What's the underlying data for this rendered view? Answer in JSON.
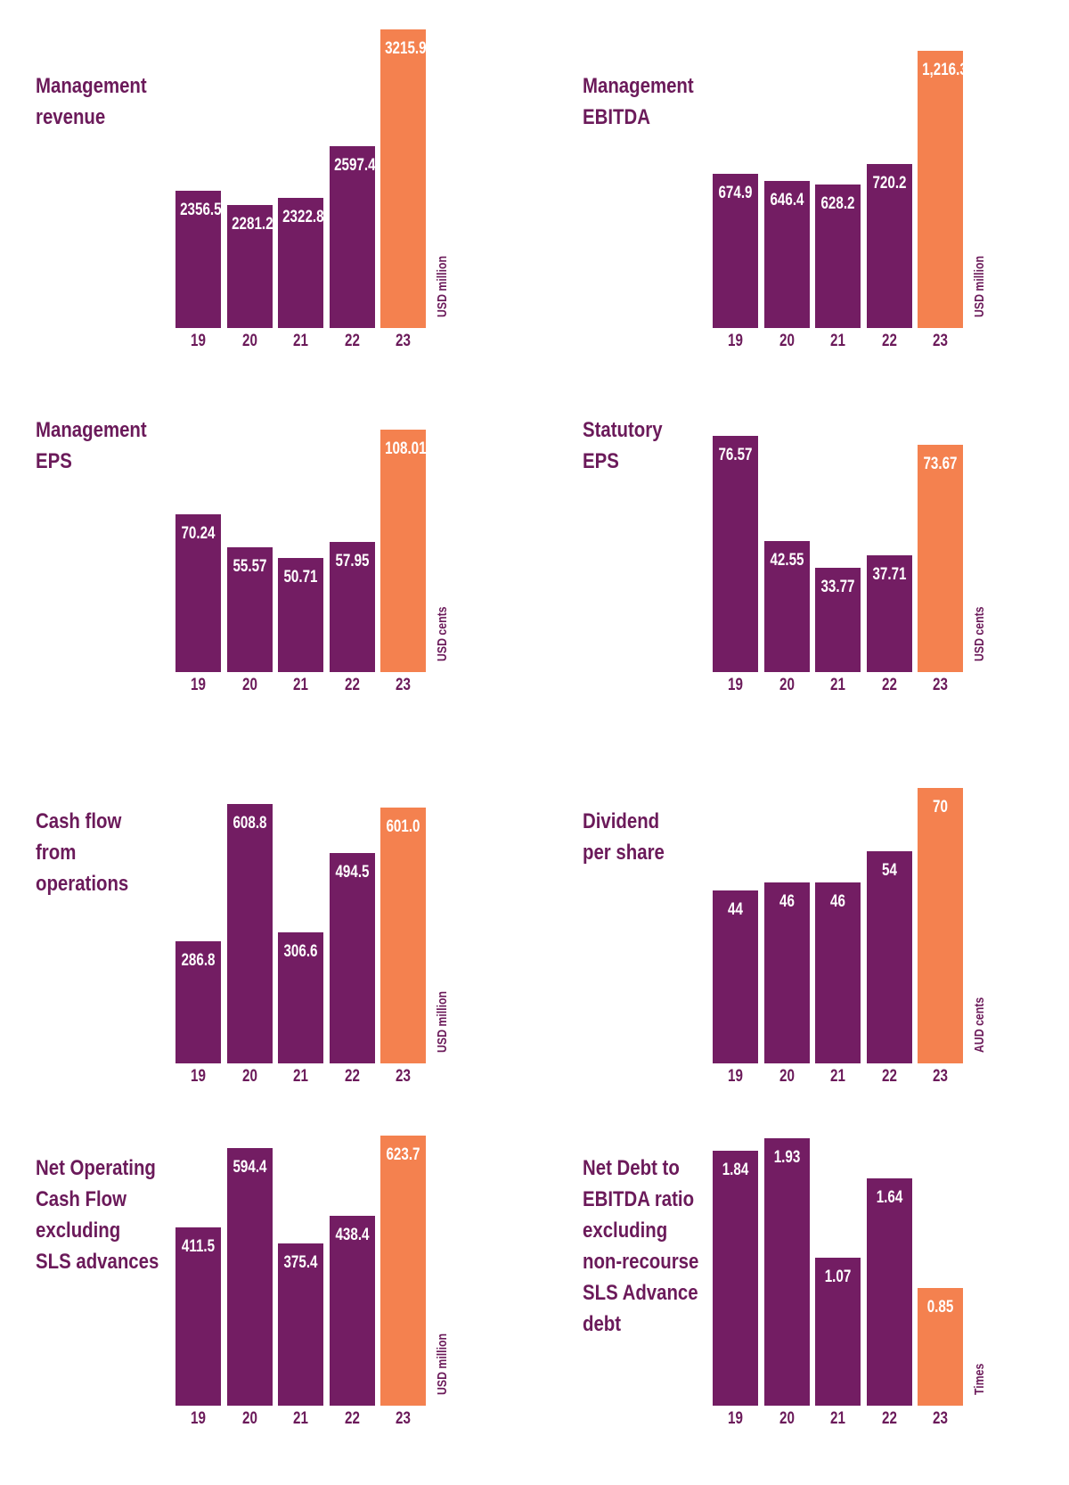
{
  "colors": {
    "bar": "#731d63",
    "bar_highlight": "#f4814f",
    "text": "#6b1a5a",
    "value_text": "#ffffff",
    "background": "#ffffff"
  },
  "chart_data": [
    {
      "id": "management-revenue",
      "type": "bar",
      "title_lines": [
        "Management",
        "revenue"
      ],
      "unit": "USD million",
      "categories": [
        "19",
        "20",
        "21",
        "22",
        "23"
      ],
      "values": [
        2356.5,
        2281.2,
        2322.8,
        2597.4,
        3215.9
      ],
      "value_labels": [
        "2356.5",
        "2281.2",
        "2322.8",
        "2597.4",
        "3215.9"
      ],
      "highlight_index": 4,
      "ylim": [
        1629,
        3215.9
      ],
      "grid": false,
      "legend": "none"
    },
    {
      "id": "management-ebitda",
      "type": "bar",
      "title_lines": [
        "Management",
        "EBITDA"
      ],
      "unit": "USD million",
      "categories": [
        "19",
        "20",
        "21",
        "22",
        "23"
      ],
      "values": [
        674.9,
        646.4,
        628.2,
        720.2,
        1216.3
      ],
      "value_labels": [
        "674.9",
        "646.4",
        "628.2",
        "720.2",
        "1,216.3"
      ],
      "highlight_index": 4,
      "ylim": [
        0,
        1216.3
      ],
      "grid": false,
      "legend": "none"
    },
    {
      "id": "management-eps",
      "type": "bar",
      "title_lines": [
        "Management",
        "EPS"
      ],
      "unit": "USD cents",
      "categories": [
        "19",
        "20",
        "21",
        "22",
        "23"
      ],
      "values": [
        70.24,
        55.57,
        50.71,
        57.95,
        108.01
      ],
      "value_labels": [
        "70.24",
        "55.57",
        "50.71",
        "57.95",
        "108.01"
      ],
      "highlight_index": 4,
      "ylim": [
        0,
        108.01
      ],
      "grid": false,
      "legend": "none"
    },
    {
      "id": "statutory-eps",
      "type": "bar",
      "title_lines": [
        "Statutory",
        "EPS"
      ],
      "unit": "USD cents",
      "categories": [
        "19",
        "20",
        "21",
        "22",
        "23"
      ],
      "values": [
        76.57,
        42.55,
        33.77,
        37.71,
        73.67
      ],
      "value_labels": [
        "76.57",
        "42.55",
        "33.77",
        "37.71",
        "73.67"
      ],
      "highlight_index": 4,
      "ylim": [
        0,
        76.57
      ],
      "grid": false,
      "legend": "none"
    },
    {
      "id": "cash-flow-from-operations",
      "type": "bar",
      "title_lines": [
        "Cash flow",
        "from",
        "operations"
      ],
      "unit": "USD million",
      "categories": [
        "19",
        "20",
        "21",
        "22",
        "23"
      ],
      "values": [
        286.8,
        608.8,
        306.6,
        494.5,
        601.0
      ],
      "value_labels": [
        "286.8",
        "608.8",
        "306.6",
        "494.5",
        "601.0"
      ],
      "highlight_index": 4,
      "ylim": [
        0,
        608.8
      ],
      "grid": false,
      "legend": "none"
    },
    {
      "id": "dividend-per-share",
      "type": "bar",
      "title_lines": [
        "Dividend",
        "per share"
      ],
      "unit": "AUD cents",
      "categories": [
        "19",
        "20",
        "21",
        "22",
        "23"
      ],
      "values": [
        44,
        46,
        46,
        54,
        70
      ],
      "value_labels": [
        "44",
        "46",
        "46",
        "54",
        "70"
      ],
      "highlight_index": 4,
      "ylim": [
        0,
        70
      ],
      "grid": false,
      "legend": "none"
    },
    {
      "id": "net-operating-cash-flow-excluding-sls-advances",
      "type": "bar",
      "title_lines": [
        "Net Operating",
        "Cash Flow",
        "excluding",
        "SLS advances"
      ],
      "unit": "USD million",
      "categories": [
        "19",
        "20",
        "21",
        "22",
        "23"
      ],
      "values": [
        411.5,
        594.4,
        375.4,
        438.4,
        623.7
      ],
      "value_labels": [
        "411.5",
        "594.4",
        "375.4",
        "438.4",
        "623.7"
      ],
      "highlight_index": 4,
      "ylim": [
        0,
        623.7
      ],
      "grid": false,
      "legend": "none"
    },
    {
      "id": "net-debt-to-ebitda-ratio",
      "type": "bar",
      "title_lines": [
        "Net Debt to",
        "EBITDA ratio",
        "excluding",
        "non-recourse",
        "SLS Advance",
        "debt"
      ],
      "unit": "Times",
      "categories": [
        "19",
        "20",
        "21",
        "22",
        "23"
      ],
      "values": [
        1.84,
        1.93,
        1.07,
        1.64,
        0.85
      ],
      "value_labels": [
        "1.84",
        "1.93",
        "1.07",
        "1.64",
        "0.85"
      ],
      "highlight_index": 4,
      "ylim": [
        0,
        1.93
      ],
      "grid": false,
      "legend": "none"
    }
  ]
}
